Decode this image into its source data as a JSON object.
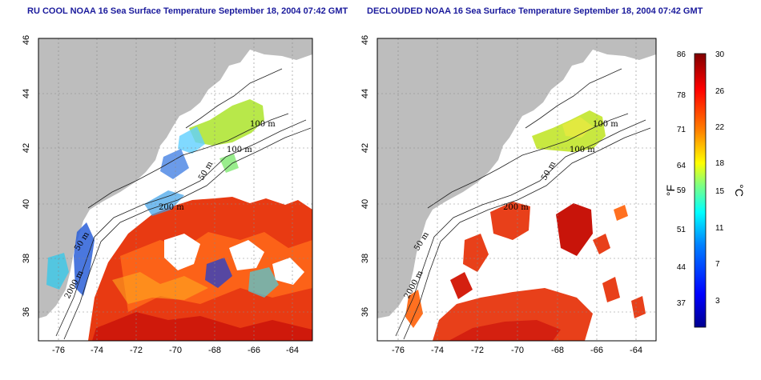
{
  "titles": {
    "left": "RU COOL NOAA 16 Sea Surface Temperature September 18, 2004 07:42 GMT",
    "right": "DECLOUDED NOAA 16 Sea Surface Temperature September 18, 2004 07:42 GMT"
  },
  "map": {
    "lon_ticks": [
      "-76",
      "-74",
      "-72",
      "-70",
      "-68",
      "-66",
      "-64"
    ],
    "lat_ticks": [
      "36",
      "38",
      "40",
      "42",
      "44",
      "46"
    ],
    "lon_range": [
      -77,
      -63
    ],
    "lat_range": [
      35,
      46
    ],
    "land_color": "#bdbdbd",
    "ocean_color": "#ffffff",
    "grid": "dotted",
    "contour_labels_left": [
      "100 m",
      "100 m",
      "50 m",
      "200 m",
      "50 m",
      "2000 m"
    ],
    "contour_labels_right": [
      "100 m",
      "100 m",
      "50 m",
      "200 m",
      "50 m",
      "2000 m"
    ]
  },
  "colorbar": {
    "fahrenheit_ticks": [
      "86",
      "78",
      "71",
      "64",
      "59",
      "51",
      "44",
      "37"
    ],
    "celsius_ticks": [
      "30",
      "26",
      "22",
      "18",
      "15",
      "11",
      "7",
      "3"
    ],
    "unit_left": "°F",
    "unit_right": "°C",
    "range_c": [
      0,
      30
    ],
    "colors": [
      "#00008f",
      "#0000ff",
      "#0080ff",
      "#00ffff",
      "#80ff80",
      "#ffff00",
      "#ff8000",
      "#ff0000",
      "#800000"
    ]
  }
}
